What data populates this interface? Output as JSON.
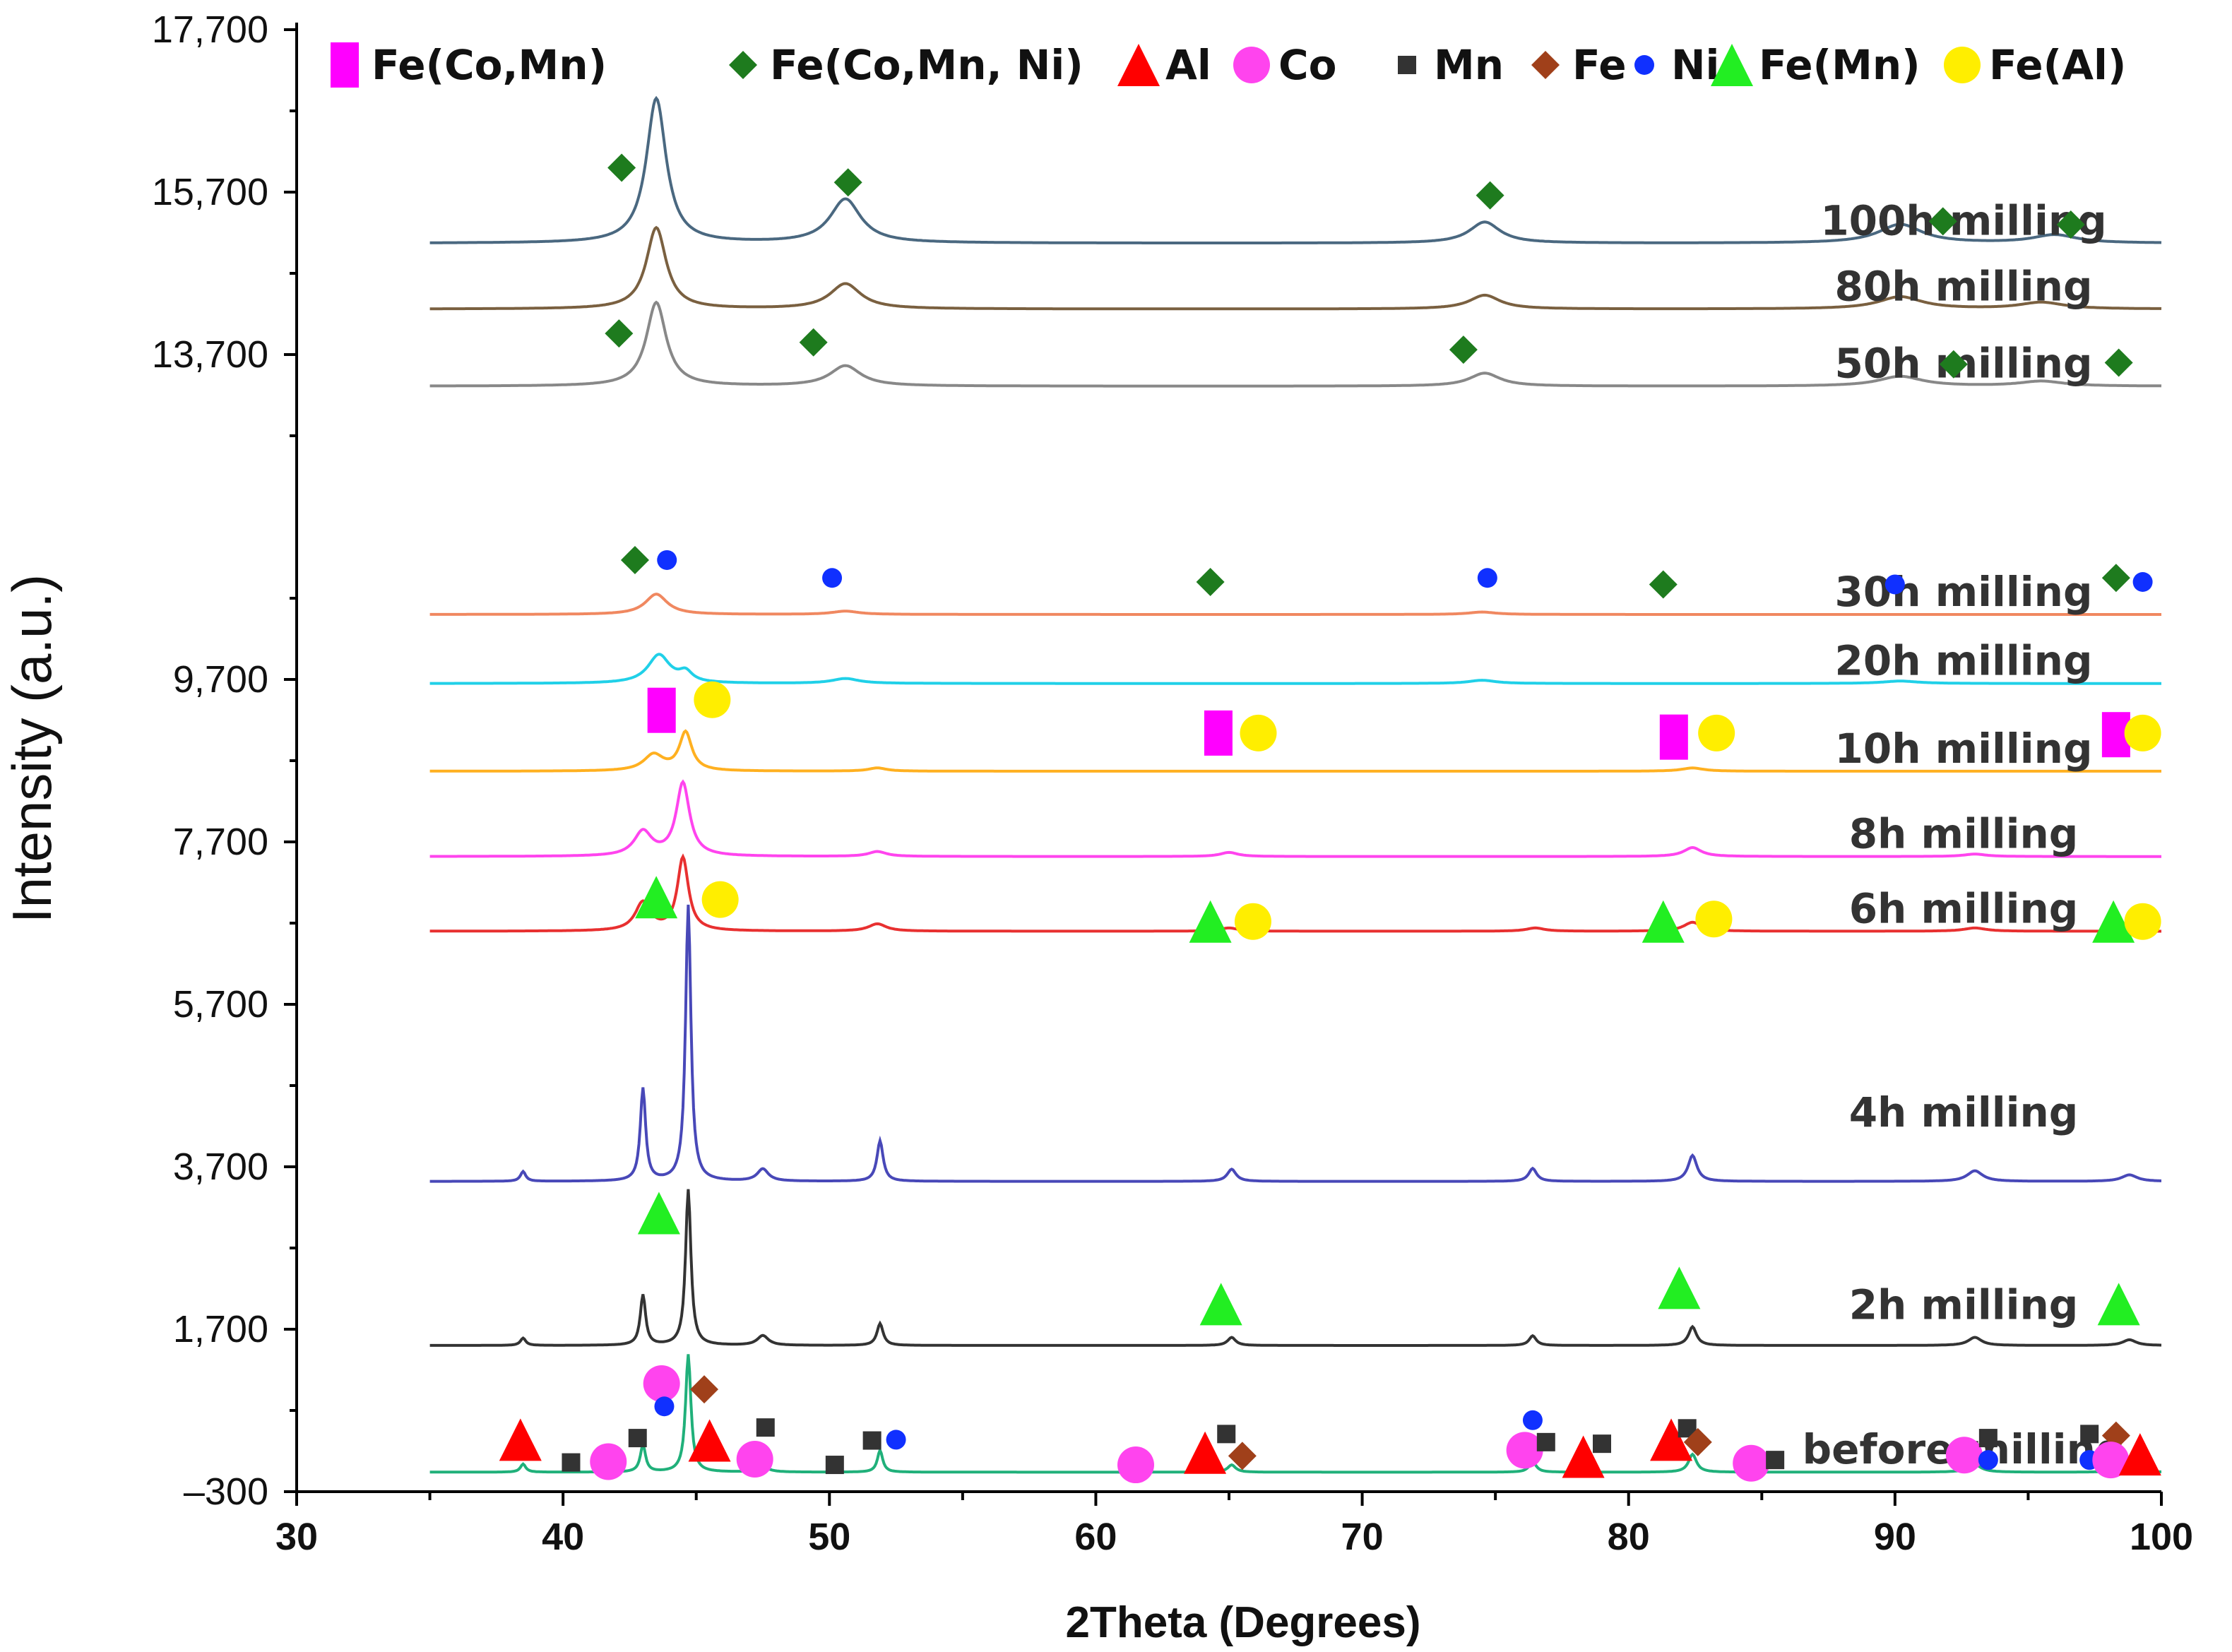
{
  "chart_data": {
    "type": "line",
    "title": "",
    "xlabel": "2Theta (Degrees)",
    "ylabel": "Intensity (a.u.)",
    "xlim": [
      30,
      100
    ],
    "ylim": [
      -300,
      17700
    ],
    "x_ticks": [
      "30",
      "40",
      "50",
      "60",
      "70",
      "80",
      "90",
      "100"
    ],
    "y_ticks": [
      "-300",
      "1,700",
      "3,700",
      "5,700",
      "7,700",
      "9,700",
      "13,700",
      "15,700",
      "17,700"
    ],
    "legend": {
      "placement": "top",
      "entries": [
        {
          "label": "Fe(Co,Mn)",
          "marker": "rect",
          "color": "#ff00ff"
        },
        {
          "label": "Fe(Co,Mn, Ni)",
          "marker": "diamond",
          "color": "#1e7b1e"
        },
        {
          "label": "Al",
          "marker": "triangle",
          "color": "#ff0000"
        },
        {
          "label": "Co",
          "marker": "circle",
          "color": "#ff44ee"
        },
        {
          "label": "Mn",
          "marker": "square",
          "color": "#333333"
        },
        {
          "label": "Fe",
          "marker": "diamond",
          "color": "#a0401a"
        },
        {
          "label": "Ni",
          "marker": "dot",
          "color": "#1030ff"
        },
        {
          "label": "Fe(Mn)",
          "marker": "triangle",
          "color": "#22ee22"
        },
        {
          "label": "Fe(Al)",
          "marker": "circle",
          "color": "#ffee00"
        }
      ]
    },
    "series": [
      {
        "name": "before milling",
        "color": "#20b07a",
        "baseline": -60,
        "peaks": [
          [
            38.5,
            100,
            0.12
          ],
          [
            43,
            330,
            0.12
          ],
          [
            44.7,
            1450,
            0.12
          ],
          [
            47.5,
            70,
            0.25
          ],
          [
            51.9,
            270,
            0.12
          ],
          [
            65.1,
            90,
            0.18
          ],
          [
            76.4,
            130,
            0.16
          ],
          [
            82.4,
            220,
            0.18
          ],
          [
            93,
            90,
            0.3
          ],
          [
            98.8,
            70,
            0.3
          ]
        ]
      },
      {
        "name": "2h milling",
        "color": "#333333",
        "baseline": 1500,
        "peaks": [
          [
            38.5,
            90,
            0.12
          ],
          [
            43,
            620,
            0.12
          ],
          [
            44.7,
            1920,
            0.12
          ],
          [
            47.5,
            120,
            0.25
          ],
          [
            51.9,
            270,
            0.14
          ],
          [
            65.1,
            100,
            0.18
          ],
          [
            76.4,
            120,
            0.16
          ],
          [
            82.4,
            230,
            0.18
          ],
          [
            93,
            100,
            0.3
          ],
          [
            98.8,
            70,
            0.3
          ]
        ]
      },
      {
        "name": "4h milling",
        "color": "#4848b8",
        "baseline": 3520,
        "peaks": [
          [
            38.5,
            120,
            0.12
          ],
          [
            43,
            1140,
            0.12
          ],
          [
            44.7,
            3400,
            0.12
          ],
          [
            47.5,
            150,
            0.25
          ],
          [
            51.9,
            500,
            0.14
          ],
          [
            65.1,
            150,
            0.2
          ],
          [
            76.4,
            160,
            0.18
          ],
          [
            82.4,
            320,
            0.2
          ],
          [
            93,
            130,
            0.35
          ],
          [
            98.8,
            80,
            0.35
          ]
        ]
      },
      {
        "name": "6h milling",
        "color": "#e83030",
        "baseline": 6600,
        "peaks": [
          [
            43,
            350,
            0.35
          ],
          [
            44.5,
            900,
            0.25
          ],
          [
            51.8,
            90,
            0.4
          ],
          [
            65,
            40,
            0.4
          ],
          [
            76.5,
            40,
            0.4
          ],
          [
            82.4,
            110,
            0.4
          ],
          [
            93,
            40,
            0.5
          ]
        ]
      },
      {
        "name": "8h milling",
        "color": "#ff44ee",
        "baseline": 7520,
        "peaks": [
          [
            43,
            300,
            0.4
          ],
          [
            44.5,
            900,
            0.3
          ],
          [
            51.8,
            60,
            0.4
          ],
          [
            65,
            50,
            0.4
          ],
          [
            82.4,
            110,
            0.4
          ],
          [
            93,
            30,
            0.5
          ]
        ]
      },
      {
        "name": "10h milling",
        "color": "#ffb020",
        "baseline": 8570,
        "peaks": [
          [
            43.4,
            200,
            0.45
          ],
          [
            44.6,
            470,
            0.28
          ],
          [
            51.8,
            40,
            0.4
          ],
          [
            82.4,
            40,
            0.5
          ]
        ]
      },
      {
        "name": "20h milling",
        "color": "#20d0e8",
        "baseline": 9650,
        "peaks": [
          [
            43.6,
            350,
            0.5
          ],
          [
            44.6,
            120,
            0.3
          ],
          [
            50.6,
            60,
            0.6
          ],
          [
            74.5,
            40,
            0.6
          ],
          [
            90.2,
            30,
            0.8
          ]
        ]
      },
      {
        "name": "30h milling",
        "color": "#f08860",
        "baseline": 10500,
        "peaks": [
          [
            43.5,
            250,
            0.5
          ],
          [
            50.6,
            40,
            0.6
          ],
          [
            74.5,
            30,
            0.6
          ]
        ]
      },
      {
        "name": "50h milling",
        "color": "#888888",
        "baseline": 13310,
        "peaks": [
          [
            43.5,
            1030,
            0.45
          ],
          [
            50.6,
            250,
            0.7
          ],
          [
            74.6,
            160,
            0.7
          ],
          [
            90.2,
            120,
            1.0
          ],
          [
            95.5,
            60,
            1.0
          ]
        ]
      },
      {
        "name": "80h milling",
        "color": "#7a6040",
        "baseline": 14260,
        "peaks": [
          [
            43.5,
            1000,
            0.45
          ],
          [
            50.6,
            310,
            0.7
          ],
          [
            74.6,
            170,
            0.7
          ],
          [
            90.2,
            150,
            1.0
          ],
          [
            95.5,
            80,
            1.0
          ]
        ]
      },
      {
        "name": "100h milling",
        "color": "#4a6880",
        "baseline": 15070,
        "peaks": [
          [
            43.5,
            1780,
            0.45
          ],
          [
            50.6,
            540,
            0.7
          ],
          [
            74.6,
            260,
            0.7
          ],
          [
            90.2,
            230,
            1.0
          ],
          [
            96,
            100,
            1.0
          ]
        ]
      }
    ],
    "markers": [
      {
        "kind": "diamond",
        "color": "#1e7b1e",
        "x": 42.2,
        "y": 16000
      },
      {
        "kind": "diamond",
        "color": "#1e7b1e",
        "x": 50.7,
        "y": 15820
      },
      {
        "kind": "diamond",
        "color": "#1e7b1e",
        "x": 74.8,
        "y": 15660
      },
      {
        "kind": "diamond",
        "color": "#1e7b1e",
        "x": 91.8,
        "y": 15340
      },
      {
        "kind": "diamond",
        "color": "#1e7b1e",
        "x": 96.6,
        "y": 15300
      },
      {
        "kind": "diamond",
        "color": "#1e7b1e",
        "x": 42.1,
        "y": 13960
      },
      {
        "kind": "diamond",
        "color": "#1e7b1e",
        "x": 49.4,
        "y": 13850
      },
      {
        "kind": "diamond",
        "color": "#1e7b1e",
        "x": 73.8,
        "y": 13760
      },
      {
        "kind": "diamond",
        "color": "#1e7b1e",
        "x": 92.2,
        "y": 13580
      },
      {
        "kind": "diamond",
        "color": "#1e7b1e",
        "x": 98.4,
        "y": 13600
      },
      {
        "kind": "diamond",
        "color": "#1e7b1e",
        "x": 42.7,
        "y": 11170
      },
      {
        "kind": "dot",
        "color": "#1030ff",
        "x": 43.9,
        "y": 11170
      },
      {
        "kind": "dot",
        "color": "#1030ff",
        "x": 50.1,
        "y": 10950
      },
      {
        "kind": "diamond",
        "color": "#1e7b1e",
        "x": 64.3,
        "y": 10900
      },
      {
        "kind": "dot",
        "color": "#1030ff",
        "x": 74.7,
        "y": 10950
      },
      {
        "kind": "diamond",
        "color": "#1e7b1e",
        "x": 81.3,
        "y": 10870
      },
      {
        "kind": "dot",
        "color": "#1030ff",
        "x": 90,
        "y": 10870
      },
      {
        "kind": "diamond",
        "color": "#1e7b1e",
        "x": 98.3,
        "y": 10950
      },
      {
        "kind": "dot",
        "color": "#1030ff",
        "x": 99.3,
        "y": 10900
      },
      {
        "kind": "rect",
        "color": "#ff00ff",
        "x": 43.7,
        "y": 9320
      },
      {
        "kind": "circle",
        "color": "#ffee00",
        "x": 45.6,
        "y": 9450
      },
      {
        "kind": "rect",
        "color": "#ff00ff",
        "x": 64.6,
        "y": 9040
      },
      {
        "kind": "circle",
        "color": "#ffee00",
        "x": 66.1,
        "y": 9040
      },
      {
        "kind": "rect",
        "color": "#ff00ff",
        "x": 81.7,
        "y": 8990
      },
      {
        "kind": "circle",
        "color": "#ffee00",
        "x": 83.3,
        "y": 9040
      },
      {
        "kind": "rect",
        "color": "#ff00ff",
        "x": 98.3,
        "y": 9020
      },
      {
        "kind": "circle",
        "color": "#ffee00",
        "x": 99.3,
        "y": 9040
      },
      {
        "kind": "triangle",
        "color": "#22ee22",
        "x": 43.5,
        "y": 7020
      },
      {
        "kind": "circle",
        "color": "#ffee00",
        "x": 45.9,
        "y": 6990
      },
      {
        "kind": "triangle",
        "color": "#22ee22",
        "x": 64.3,
        "y": 6720
      },
      {
        "kind": "circle",
        "color": "#ffee00",
        "x": 65.9,
        "y": 6720
      },
      {
        "kind": "triangle",
        "color": "#22ee22",
        "x": 81.3,
        "y": 6720
      },
      {
        "kind": "circle",
        "color": "#ffee00",
        "x": 83.2,
        "y": 6750
      },
      {
        "kind": "triangle",
        "color": "#22ee22",
        "x": 98.2,
        "y": 6720
      },
      {
        "kind": "circle",
        "color": "#ffee00",
        "x": 99.3,
        "y": 6720
      },
      {
        "kind": "triangle",
        "color": "#22ee22",
        "x": 43.6,
        "y": 3130
      },
      {
        "kind": "triangle",
        "color": "#22ee22",
        "x": 64.7,
        "y": 2010
      },
      {
        "kind": "triangle",
        "color": "#22ee22",
        "x": 81.9,
        "y": 2210
      },
      {
        "kind": "triangle",
        "color": "#22ee22",
        "x": 98.4,
        "y": 2010
      },
      {
        "kind": "circle",
        "color": "#ff44ee",
        "x": 43.7,
        "y": 1030
      },
      {
        "kind": "dot",
        "color": "#1030ff",
        "x": 43.8,
        "y": 750
      },
      {
        "kind": "diamond",
        "color": "#a0401a",
        "x": 45.3,
        "y": 960
      },
      {
        "kind": "triangle",
        "color": "#ff0000",
        "x": 38.4,
        "y": 340
      },
      {
        "kind": "square",
        "color": "#333333",
        "x": 40.3,
        "y": 60
      },
      {
        "kind": "circle",
        "color": "#ff44ee",
        "x": 41.7,
        "y": 70
      },
      {
        "kind": "square",
        "color": "#333333",
        "x": 42.8,
        "y": 360
      },
      {
        "kind": "triangle",
        "color": "#ff0000",
        "x": 45.5,
        "y": 330
      },
      {
        "kind": "circle",
        "color": "#ff44ee",
        "x": 47.2,
        "y": 100
      },
      {
        "kind": "square",
        "color": "#333333",
        "x": 47.6,
        "y": 490
      },
      {
        "kind": "square",
        "color": "#333333",
        "x": 50.2,
        "y": 30
      },
      {
        "kind": "square",
        "color": "#333333",
        "x": 51.6,
        "y": 330
      },
      {
        "kind": "dot",
        "color": "#1030ff",
        "x": 52.5,
        "y": 340
      },
      {
        "kind": "circle",
        "color": "#ff44ee",
        "x": 61.5,
        "y": 30
      },
      {
        "kind": "triangle",
        "color": "#ff0000",
        "x": 64.1,
        "y": 180
      },
      {
        "kind": "square",
        "color": "#333333",
        "x": 64.9,
        "y": 410
      },
      {
        "kind": "diamond",
        "color": "#a0401a",
        "x": 65.5,
        "y": 140
      },
      {
        "kind": "dot",
        "color": "#1030ff",
        "x": 76.4,
        "y": 580
      },
      {
        "kind": "circle",
        "color": "#ff44ee",
        "x": 76.1,
        "y": 210
      },
      {
        "kind": "square",
        "color": "#333333",
        "x": 76.9,
        "y": 310
      },
      {
        "kind": "triangle",
        "color": "#ff0000",
        "x": 78.3,
        "y": 130
      },
      {
        "kind": "square",
        "color": "#333333",
        "x": 79,
        "y": 290
      },
      {
        "kind": "triangle",
        "color": "#ff0000",
        "x": 81.6,
        "y": 340
      },
      {
        "kind": "square",
        "color": "#333333",
        "x": 82.2,
        "y": 480
      },
      {
        "kind": "diamond",
        "color": "#a0401a",
        "x": 82.6,
        "y": 310
      },
      {
        "kind": "circle",
        "color": "#ff44ee",
        "x": 84.6,
        "y": 50
      },
      {
        "kind": "square",
        "color": "#333333",
        "x": 85.5,
        "y": 90
      },
      {
        "kind": "circle",
        "color": "#ff44ee",
        "x": 92.6,
        "y": 150
      },
      {
        "kind": "square",
        "color": "#333333",
        "x": 93.5,
        "y": 360
      },
      {
        "kind": "dot",
        "color": "#1030ff",
        "x": 93.5,
        "y": 90
      },
      {
        "kind": "square",
        "color": "#333333",
        "x": 97.3,
        "y": 410
      },
      {
        "kind": "dot",
        "color": "#1030ff",
        "x": 97.3,
        "y": 90
      },
      {
        "kind": "diamond",
        "color": "#a0401a",
        "x": 98.3,
        "y": 390
      },
      {
        "kind": "circle",
        "color": "#ff44ee",
        "x": 98.1,
        "y": 90
      },
      {
        "kind": "triangle",
        "color": "#ff0000",
        "x": 99.2,
        "y": 160
      }
    ]
  }
}
